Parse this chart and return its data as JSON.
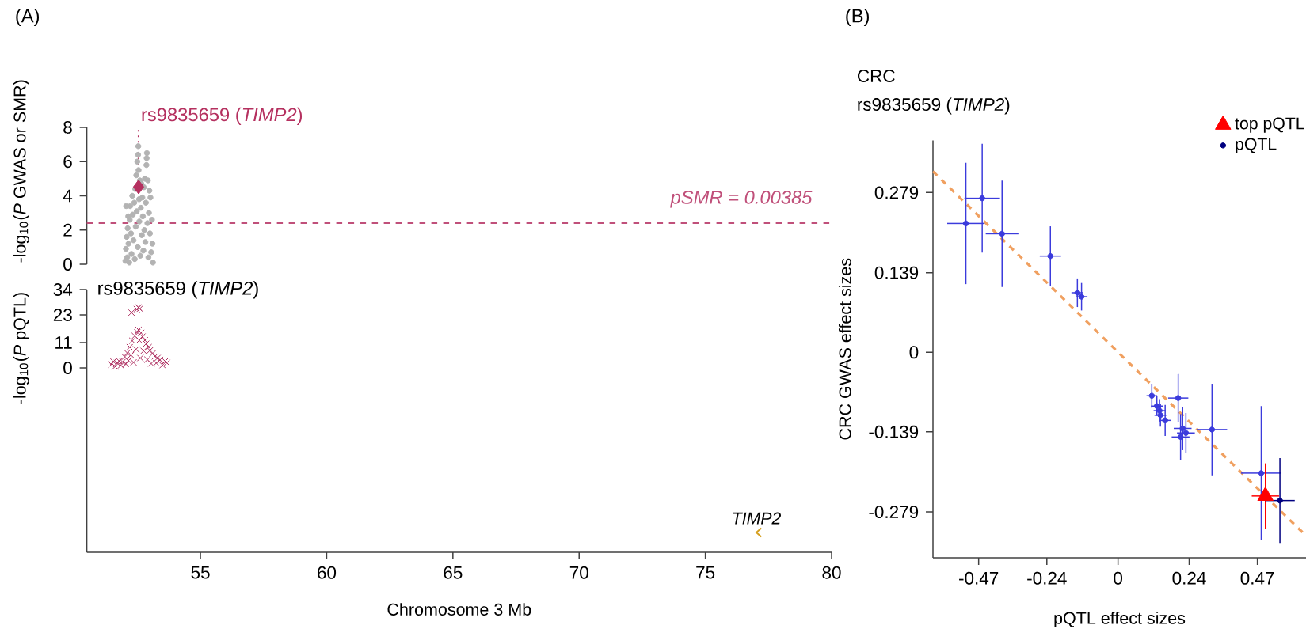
{
  "chart_data": [
    {
      "type": "scatter",
      "ylabel": "-log$_{10}$(*P* GWAS or SMR)",
      "xlim": [
        50.5,
        80
      ],
      "ylim": [
        0,
        8
      ],
      "yticks": [
        0,
        2,
        4,
        6,
        8
      ],
      "tick_labels": "y",
      "series": [
        {
          "color": "#b3b3b3",
          "marker": "circle",
          "x": [
            52.03,
            52.05,
            52.08,
            52.1,
            52.12,
            52.15,
            52.18,
            52.2,
            52.22,
            52.25,
            52.27,
            52.3,
            52.32,
            52.35,
            52.38,
            52.4,
            52.42,
            52.44,
            52.46,
            52.48,
            52.5,
            52.52,
            52.54,
            52.55,
            52.57,
            52.58,
            52.6,
            52.62,
            52.64,
            52.66,
            52.68,
            52.7,
            52.72,
            52.74,
            52.76,
            52.78,
            52.8,
            52.82,
            52.84,
            52.86,
            52.88,
            52.9,
            52.92,
            52.94,
            52.96,
            52.98,
            53.0,
            53.02,
            53.05,
            53.08,
            53.1,
            53.12,
            52.06,
            52.14,
            52.87,
            52.53
          ],
          "values": [
            0.2,
            0.9,
            1.6,
            0.4,
            2.1,
            1.2,
            0.1,
            2.6,
            3.4,
            1.8,
            0.6,
            4.0,
            2.9,
            1.4,
            3.6,
            0.3,
            4.4,
            2.2,
            5.2,
            3.1,
            6.0,
            1.0,
            6.9,
            5.5,
            3.8,
            2.5,
            4.9,
            0.5,
            3.3,
            4.7,
            1.7,
            3.9,
            2.8,
            0.8,
            4.5,
            2.0,
            5.0,
            1.3,
            3.6,
            5.8,
            6.5,
            2.4,
            4.9,
            0.4,
            3.0,
            4.3,
            1.8,
            3.9,
            0.7,
            2.6,
            1.2,
            0.1,
            3.4,
            2.8,
            6.2,
            6.4
          ]
        },
        {
          "color": "#b5305f",
          "marker": "diamond",
          "x": [
            52.55
          ],
          "values": [
            4.52
          ]
        }
      ],
      "ref_lines": [
        {
          "axis": "y",
          "value": 2.41,
          "color": "#c0507a",
          "line_style": "dashed"
        }
      ],
      "annotations": [
        "(A)",
        "pSMR = 0.00385",
        {
          "text": "rs9835659 (*TIMP2*)",
          "x": 52.55,
          "y": 4.52
        }
      ]
    },
    {
      "type": "scatter",
      "ylabel": "-log$_{10}$(*P* pQTL)",
      "xlabel": "Chromosome 3 Mb",
      "xlim": [
        50.5,
        80
      ],
      "xticks": [
        55,
        60,
        65,
        70,
        75,
        80
      ],
      "ylim": [
        -80,
        34
      ],
      "yticks": [
        0,
        11,
        23,
        34
      ],
      "series": [
        {
          "color": "#ad2c5e",
          "marker": "cross",
          "x": [
            51.47,
            51.55,
            51.62,
            51.7,
            51.78,
            51.85,
            51.92,
            52.0,
            52.05,
            52.1,
            52.15,
            52.2,
            52.25,
            52.3,
            52.35,
            52.4,
            52.45,
            52.5,
            52.55,
            52.58,
            52.62,
            52.65,
            52.7,
            52.75,
            52.8,
            52.85,
            52.9,
            52.95,
            53.0,
            53.05,
            53.1,
            53.2,
            53.25,
            53.3,
            53.4,
            53.5,
            53.6,
            53.67,
            52.27,
            52.48,
            52.55,
            52.6
          ],
          "values": [
            1.5,
            2.8,
            0.6,
            2.2,
            3.0,
            1.1,
            2.6,
            4.8,
            1.8,
            6.5,
            3.2,
            9.0,
            5.6,
            11.8,
            2.4,
            13.9,
            8.1,
            15.5,
            16.5,
            12.0,
            4.3,
            15.2,
            13.6,
            7.4,
            12.0,
            10.5,
            3.6,
            9.0,
            7.6,
            1.9,
            6.2,
            5.0,
            2.1,
            4.3,
            3.5,
            1.2,
            2.9,
            2.2,
            24.0,
            25.5,
            26.2,
            25.7
          ]
        }
      ],
      "annotations": [
        {
          "text": "rs9835659 (*TIMP2*)",
          "x": 52.55,
          "y": 26.2
        },
        "TIMP2"
      ]
    },
    {
      "type": "scatter",
      "title": "CRC",
      "subtitle": "rs9835659 (*TIMP2*)",
      "xlabel": "pQTL effect sizes",
      "ylabel": "CRC GWAS effect sizes",
      "xlim": [
        -0.624,
        0.634
      ],
      "ylim": [
        -0.359,
        0.37
      ],
      "xticks": [
        -0.47,
        -0.24,
        0,
        0.24,
        0.47
      ],
      "yticks": [
        -0.279,
        -0.139,
        0,
        0.139,
        0.279
      ],
      "legend": "top right",
      "annotations": [
        "(B)"
      ],
      "series": [
        {
          "type": "line",
          "color": "#f0a060",
          "line_style": "dashed",
          "x": [
            -0.624,
            0.631
          ],
          "values": [
            0.316,
            -0.319
          ]
        },
        {
          "color": "#3b3bdc",
          "marker": "circle",
          "x": [
            -0.513,
            -0.458,
            -0.391,
            -0.228,
            -0.137,
            -0.123,
            0.114,
            0.203,
            0.131,
            0.14,
            0.143,
            0.159,
            0.218,
            0.229,
            0.211,
            0.317,
            0.483
          ],
          "values": [
            0.225,
            0.269,
            0.207,
            0.168,
            0.104,
            0.097,
            -0.076,
            -0.08,
            -0.094,
            -0.102,
            -0.11,
            -0.119,
            -0.133,
            -0.141,
            -0.148,
            -0.135,
            -0.211
          ],
          "xerrors": [
            0.063,
            0.06,
            0.055,
            0.036,
            0.02,
            0.02,
            0.018,
            0.034,
            0.02,
            0.02,
            0.02,
            0.02,
            0.03,
            0.03,
            0.03,
            0.051,
            0.068
          ],
          "errors": [
            0.106,
            0.095,
            0.093,
            0.052,
            0.025,
            0.024,
            0.021,
            0.042,
            0.017,
            0.02,
            0.02,
            0.027,
            0.038,
            0.035,
            0.04,
            0.08,
            0.117
          ]
        },
        {
          "name": "top pQTL",
          "color": "#ff0000",
          "marker": "triangle",
          "x": [
            0.497
          ],
          "values": [
            -0.251
          ],
          "xerrors": [
            0.046
          ],
          "errors": [
            0.057
          ]
        },
        {
          "name": "pQTL",
          "color": "#000080",
          "marker": "circle",
          "x": [
            0.546
          ],
          "values": [
            -0.259
          ],
          "xerrors": [
            0.05
          ],
          "errors": [
            0.074
          ]
        }
      ]
    }
  ]
}
